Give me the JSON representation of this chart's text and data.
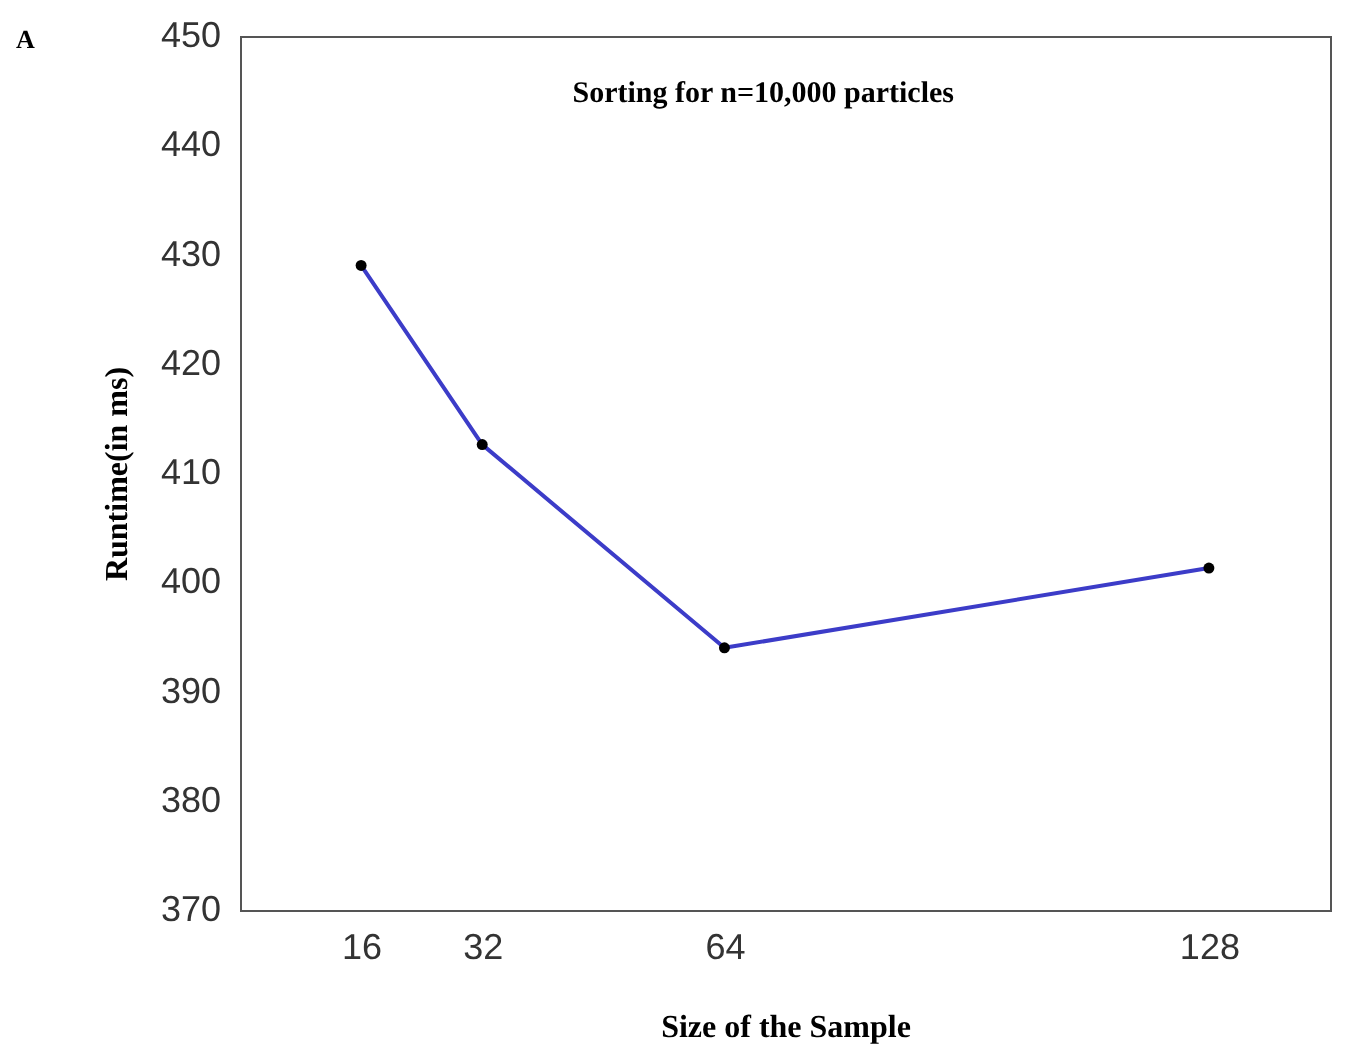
{
  "chart_data": {
    "type": "line",
    "title": "Sorting for n=10,000 particles",
    "xlabel": "Size of the Sample",
    "ylabel": "Runtime(in ms)",
    "annotations": [
      "A"
    ],
    "x": [
      16,
      32,
      64,
      128
    ],
    "series": [
      {
        "color": "#3c3cc8",
        "values": [
          429,
          412.6,
          394,
          401.3
        ]
      }
    ],
    "xlim": [
      0,
      144
    ],
    "xticks": [
      16,
      32,
      64,
      128
    ],
    "ylim": [
      370,
      450
    ],
    "yticks": [
      370,
      380,
      390,
      400,
      410,
      420,
      430,
      440,
      450
    ],
    "marker": "circle",
    "grid": false
  }
}
